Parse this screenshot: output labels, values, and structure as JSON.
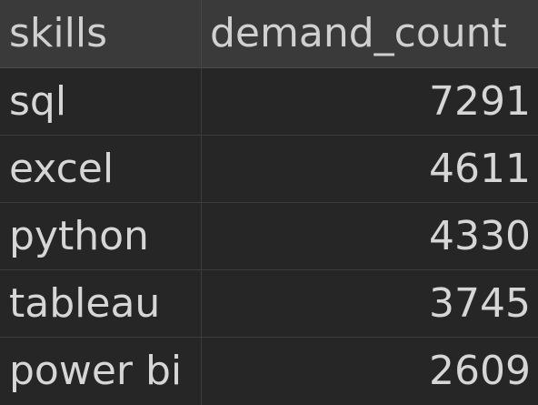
{
  "table": {
    "columns": [
      "skills",
      "demand_count"
    ],
    "rows": [
      {
        "skills": "sql",
        "demand_count": "7291"
      },
      {
        "skills": "excel",
        "demand_count": "4611"
      },
      {
        "skills": "python",
        "demand_count": "4330"
      },
      {
        "skills": "tableau",
        "demand_count": "3745"
      },
      {
        "skills": "power bi",
        "demand_count": "2609"
      }
    ]
  },
  "colors": {
    "background": "#262626",
    "header_background": "#3a3a3a",
    "text": "#d6d6d6",
    "gridline": "#3d3d3d"
  }
}
